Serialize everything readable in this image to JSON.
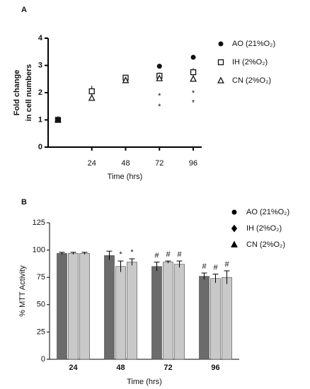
{
  "chart_data": [
    {
      "type": "scatter",
      "panel": "A",
      "x_label": "Time (hrs)",
      "y_label": [
        "Fold change",
        "in cell numbers"
      ],
      "x": [
        0,
        24,
        48,
        72,
        96
      ],
      "xlim": [
        -7,
        102
      ],
      "xticks": [
        24,
        48,
        72,
        96
      ],
      "ylim": [
        0,
        4
      ],
      "yticks": [
        0,
        1,
        2,
        3,
        4
      ],
      "series": [
        {
          "name": "AO (21%O₂)",
          "marker": "circle",
          "color": "#111111",
          "values": [
            1,
            2.05,
            2.5,
            2.97,
            3.3
          ],
          "errors": [
            0.05,
            0.08,
            0.08,
            0.08,
            0.08
          ]
        },
        {
          "name": "IH (2%O₂)",
          "marker": "square",
          "color": "#111111",
          "values": [
            1,
            2.05,
            2.55,
            2.62,
            2.75
          ],
          "errors": [
            0.05,
            0.2,
            0.1,
            0.12,
            0.15
          ]
        },
        {
          "name": "CN (2%O₂)",
          "marker": "triangle",
          "color": "#111111",
          "values": [
            1,
            1.8,
            2.45,
            2.52,
            2.5
          ],
          "errors": [
            0.05,
            0.08,
            0.08,
            0.08,
            0.1
          ]
        }
      ],
      "annotations": [
        {
          "text": "*",
          "x": 72,
          "y": 1.95
        },
        {
          "text": "*",
          "x": 72,
          "y": 1.55
        },
        {
          "text": "*",
          "x": 96,
          "y": 2.05
        },
        {
          "text": "*",
          "x": 96,
          "y": 1.7
        }
      ]
    },
    {
      "type": "bar",
      "panel": "B",
      "x_label": "Time (hrs)",
      "y_label": "% MTT Activity",
      "categories": [
        "24",
        "48",
        "72",
        "96"
      ],
      "ylim": [
        0,
        125
      ],
      "yticks": [
        0,
        25,
        50,
        75,
        100,
        125
      ],
      "series": [
        {
          "name": "AO (21%O₂)",
          "marker": "circle",
          "color": "#6b6b6b",
          "values": [
            97,
            95,
            85,
            76
          ],
          "errors": [
            1,
            4,
            4,
            3
          ],
          "annotations": [
            null,
            null,
            "#",
            "#"
          ]
        },
        {
          "name": "IH (2%O₂)",
          "marker": "diamond",
          "color": "#c9c9c9",
          "values": [
            97,
            85,
            89,
            74
          ],
          "errors": [
            1,
            5,
            1,
            4
          ],
          "annotations": [
            null,
            "*",
            "#",
            "#"
          ]
        },
        {
          "name": "CN (2%O₂)",
          "marker": "triangle",
          "color": "#c9c9c9",
          "values": [
            97,
            89,
            87,
            75
          ],
          "errors": [
            1,
            3,
            3,
            6
          ],
          "annotations": [
            null,
            "*",
            "#",
            "#"
          ]
        }
      ]
    }
  ]
}
